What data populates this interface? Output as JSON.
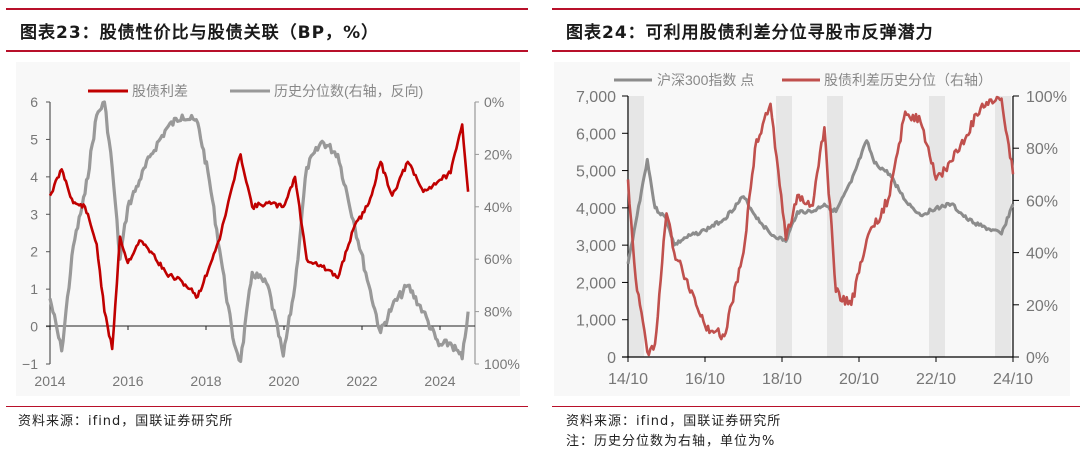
{
  "panels": {
    "left": {
      "title": "图表23：股债性价比与股债关联（BP，%）",
      "source": "资料来源：ifind，国联证券研究所"
    },
    "right": {
      "title": "图表24：可利用股债利差分位寻股市反弹潜力",
      "source": "资料来源：ifind，国联证券研究所",
      "note": "注：历史分位数为右轴，单位为%"
    }
  },
  "colors": {
    "rule_red": "#b8102a",
    "spread_red_left": "#c00000",
    "percentile_gray": "#999999",
    "spread_red_right": "#c0504d",
    "csi300_gray": "#8c8c8c",
    "shade": "#e6e6e6"
  },
  "chart_data": [
    {
      "type": "line",
      "title": "图表23：股债性价比与股债关联（BP，%）",
      "legend": [
        "股债利差",
        "历史分位数(右轴，反向)"
      ],
      "legend_position": "top",
      "x_ticks": [
        "2014",
        "2016",
        "2018",
        "2020",
        "2022",
        "2024"
      ],
      "y_left_ticks": [
        "6",
        "5",
        "4",
        "3",
        "2",
        "1",
        "0",
        "−1"
      ],
      "y_right_ticks": [
        "0%",
        "20%",
        "40%",
        "60%",
        "80%",
        "100%"
      ],
      "ylim_left": [
        -1,
        6
      ],
      "ylim_right_inverted": [
        0,
        100
      ],
      "grid": false,
      "x": [
        2014.0,
        2014.3,
        2014.6,
        2014.9,
        2015.2,
        2015.4,
        2015.6,
        2015.8,
        2016.0,
        2016.3,
        2016.6,
        2017.0,
        2017.4,
        2017.8,
        2018.1,
        2018.4,
        2018.7,
        2018.9,
        2019.2,
        2019.6,
        2020.0,
        2020.3,
        2020.6,
        2021.0,
        2021.4,
        2021.8,
        2022.2,
        2022.5,
        2022.8,
        2023.2,
        2023.6,
        2024.0,
        2024.3,
        2024.6,
        2024.75
      ],
      "series": [
        {
          "name": "股债利差",
          "axis": "left",
          "values": [
            3.5,
            4.2,
            3.3,
            3.2,
            2.2,
            0.4,
            -0.6,
            2.4,
            1.7,
            2.3,
            2.0,
            1.4,
            1.2,
            0.8,
            1.6,
            2.5,
            3.8,
            4.6,
            3.2,
            3.3,
            3.2,
            4.0,
            1.8,
            1.6,
            1.3,
            2.6,
            3.3,
            4.4,
            3.5,
            4.4,
            3.6,
            3.9,
            4.1,
            5.4,
            3.6
          ]
        },
        {
          "name": "历史分位数(右轴，反向)",
          "axis": "right",
          "values": [
            75,
            95,
            55,
            35,
            5,
            0,
            25,
            60,
            40,
            30,
            20,
            10,
            5,
            8,
            30,
            60,
            90,
            99,
            65,
            70,
            97,
            70,
            25,
            15,
            20,
            45,
            70,
            88,
            78,
            70,
            80,
            93,
            92,
            98,
            80
          ]
        }
      ]
    },
    {
      "type": "line",
      "title": "图表24：可利用股债利差分位寻股市反弹潜力",
      "legend": [
        "沪深300指数 点",
        "股债利差历史分位（右轴）"
      ],
      "legend_position": "top",
      "x_ticks": [
        "14/10",
        "16/10",
        "18/10",
        "20/10",
        "22/10",
        "24/10"
      ],
      "y_left_ticks": [
        "7,000",
        "6,000",
        "5,000",
        "4,000",
        "3,000",
        "2,000",
        "1,000",
        "0"
      ],
      "y_right_ticks": [
        "100%",
        "80%",
        "60%",
        "40%",
        "20%",
        "0%"
      ],
      "ylim_left": [
        0,
        7000
      ],
      "ylim_right": [
        0,
        100
      ],
      "grid": false,
      "shaded_periods": [
        [
          "14/10",
          "15/03"
        ],
        [
          "18/05",
          "18/11"
        ],
        [
          "19/07",
          "20/01"
        ],
        [
          "21/11",
          "22/05"
        ],
        [
          "23/11",
          "24/05"
        ]
      ],
      "x": [
        2014.8,
        2015.0,
        2015.3,
        2015.5,
        2015.8,
        2016.0,
        2016.3,
        2016.8,
        2017.3,
        2017.8,
        2018.1,
        2018.5,
        2018.9,
        2019.2,
        2019.6,
        2019.9,
        2020.2,
        2020.6,
        2021.0,
        2021.2,
        2021.6,
        2022.0,
        2022.4,
        2022.8,
        2023.2,
        2023.6,
        2024.0,
        2024.5,
        2024.8
      ],
      "series": [
        {
          "name": "沪深300指数 点",
          "axis": "left",
          "values": [
            2500,
            3600,
            5300,
            4000,
            3700,
            3000,
            3200,
            3400,
            3700,
            4300,
            3800,
            3300,
            3100,
            3900,
            3900,
            4100,
            3900,
            4700,
            5800,
            5200,
            4900,
            4200,
            3800,
            4000,
            4100,
            3700,
            3500,
            3300,
            4100
          ]
        },
        {
          "name": "股债利差历史分位（右轴）",
          "axis": "right",
          "values": [
            68,
            30,
            2,
            5,
            55,
            40,
            30,
            12,
            8,
            40,
            80,
            97,
            45,
            62,
            58,
            88,
            25,
            20,
            45,
            50,
            62,
            94,
            90,
            68,
            75,
            85,
            97,
            99,
            70
          ]
        }
      ]
    }
  ]
}
